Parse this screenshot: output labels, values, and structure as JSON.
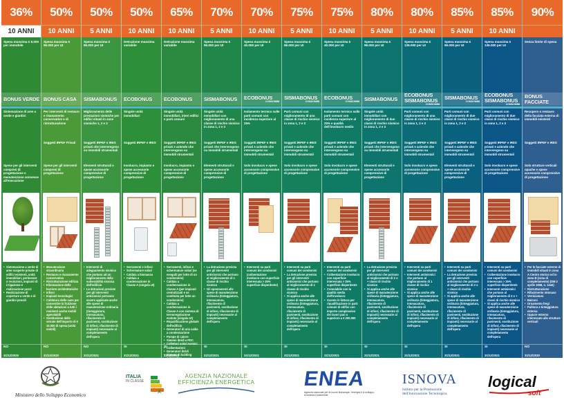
{
  "columns": [
    {
      "percent": "36%",
      "term": "10 ANNI",
      "term_hl": true,
      "spesa": "Spesa massima € 5.000 per immobile",
      "name": "BONUS VERDE",
      "name_sub": "",
      "desc": "Sistemazione di aree a verde e giardini",
      "sogg": "",
      "amb": "Spese per gli interventi compresi di progettazione e manutenzione connesse all'esecuzione",
      "list": [
        "Sistemazione a verde di aree scoperte private di edifici esistenti, unità immobiliari, pertinenze o recinzioni, impianti di irrigazione e realizzazione pozzi",
        "Realizzazione di coperture a verde e di giardini pensili"
      ],
      "yn": "NO",
      "dt": "31/12/2020",
      "color": "#2f8a36",
      "img": "tree"
    },
    {
      "percent": "50%",
      "term": "10 ANNI",
      "term_hl": false,
      "spesa": "Spesa massima € 96.000 per UI",
      "name": "BONUS CASA",
      "name_sub": "",
      "desc": "Per interventi di restauro e risanamento conservativo e di ristrutturazione",
      "sogg": "Soggetti IRPEF Privati",
      "amb": "Spese per gli interventi compresi di progettazione",
      "list": [
        "Manutenzione straordinaria",
        "Restauro e risanamento conservativo",
        "Ristrutturazione edilizia",
        "Eliminazione delle barriere architettoniche",
        "Infissi",
        "Impianti tecnologici",
        "Cablatura delle case per consentire la fruizione delle abitazioni a tutti i residenti anche mobili agevolabili",
        "Sostituzione delle vetrate dell'importo di € 10.000 di spesa (unità mobili)"
      ],
      "yn": "NO",
      "dt": "31/12/2020",
      "color": "#4b9a3a",
      "img": "windows"
    },
    {
      "percent": "50%",
      "term": "5 ANNI",
      "term_hl": false,
      "spesa": "Spesa massima € 96.000 per UI",
      "name": "SISMABONUS",
      "name_sub": "",
      "desc": "Miglioramento delle prestazioni sismiche per edifici situati in zone sismiche 1, 2 e 3",
      "sogg": "Soggetti IRPEF e IRES privati che intervengono su immobili strumentali",
      "amb": "Elementi strutturali e spese accessorie comprensive di progettazione",
      "list": [
        "Interventi di adeguamento sismico che portano ad un miglioramento della vulnerabilità sismica dell'edificio",
        "Le detrazioni previste per gli interventi antisismici potranno essere applicate anche alle spese di manutenzione ordinaria (tinteggiatura, intonacatura, rifacimento di pavimenti, sostituzione di infissi, rifacimento di impianti) necessarie al completamento dell'opera"
      ],
      "yn": "NO",
      "dt": "31/12/2021",
      "color": "#3c9540",
      "img": "pillars"
    },
    {
      "percent": "50%",
      "term": "10 ANNI",
      "term_hl": false,
      "spesa": "Detrazione massima variabile",
      "name": "ECOBONUS",
      "name_sub": "",
      "desc": "Singole unità immobiliari",
      "sogg": "Soggetti IRPEF e IRES",
      "amb": "Involucro, impianto e spese accessorie comprensive di progettazione",
      "list": [
        "Serramenti e infissi",
        "Schermature solari",
        "Caldaia a biomassa",
        "Caldaia a condensazione in Classe A (singola UI)"
      ],
      "yn": "SI",
      "dt": "31/12/2021",
      "color": "#2e8f3a",
      "img": "boiler"
    },
    {
      "percent": "65%",
      "term": "10 ANNI",
      "term_hl": false,
      "spesa": "Detrazione massima variabile",
      "name": "ECOBONUS",
      "name_sub": "",
      "desc": "Singole unità immobiliari, interi edifici e parti comuni",
      "sogg": "Soggetti IRPEF e IRES privati e aziende che intervengono su immobili strumentali",
      "amb": "Involucro, impianto e spese accessorie comprensive di progettazione",
      "list": [
        "Serramenti, infissi e schermature solari (se eseguiti per lotto di un condominio)",
        "Caldaia a condensazione in Classe A (per impianti centralizzati e se costituita per lotte un condominio)",
        "Caldaia a condensazione in Classe A con sistema di termoregolazione evoluto (singola UI)",
        "Riqualificazione globale dell'edificio",
        "Generatori di aria calda a condensazione",
        "Pompe di calore",
        "Sistemi ibridi a PDC",
        "Collettori solari termici",
        "Coibentazioni",
        "Generatori ibridi",
        "Sistemi di building automation",
        "Microgeneratori"
      ],
      "yn": "SI",
      "dt": "31/12/2021",
      "color": "#2b8a40",
      "img": "roofwall"
    },
    {
      "percent": "70%",
      "term": "5 ANNI",
      "term_hl": false,
      "spesa": "Spesa massima € 96.000 per UI",
      "name": "SISMABONUS",
      "name_sub": "",
      "desc": "Singole unità immobiliari con miglioramento di una classe di rischio sismico in zona 1, 2 e 3",
      "sogg": "Soggetti IRPEF e IRES privati che intervengono su immobili strumentali",
      "amb": "Elementi strutturali e spese accessorie comprensive di progettazione",
      "list": [
        "La detrazione prevista per gli interventi antisismici che portano al miglioramento di 1 classe di rischio sismico",
        "Gli spostamenti alle spese di manutenzione ordinaria (tinteggiatura, intonacatura, rifacimento di pavimenti, sostituzione di infissi, rifacimento di impianti) necessarie al completamento dell'opera"
      ],
      "yn": "SI",
      "dt": "31/12/2021",
      "color": "#20864a",
      "img": "wallpillar"
    },
    {
      "percent": "70%",
      "term": "10 ANNI",
      "term_hl": false,
      "spesa": "Spesa massima € 40.000 per UI",
      "name": "ECOBONUS",
      "name_sub": "CONDOMINI",
      "desc": "Isolamento termico sulle parti comuni con incidenza superiore al 25%",
      "sogg": "Soggetti IRPEF e IRES privati e aziende che intervengono su immobili strumentali",
      "amb": "Solo involucro e spese accessorie comprensive di progettazione",
      "list": [
        "Interventi su parti comuni dei condomini (coibentazione involucro con superficie interessata > 25% superficie disperdente)"
      ],
      "yn": "SI",
      "dt": "31/12/2021",
      "color": "#198553",
      "img": "insul"
    },
    {
      "percent": "75%",
      "term": "5 ANNI",
      "term_hl": false,
      "spesa": "Spesa massima € 96.000 per UI",
      "name": "SISMABONUS",
      "name_sub": "CONDOMINI",
      "desc": "Parti comuni con miglioramento di una classe di rischio sismico in zona 1, 2 e 3",
      "sogg": "Soggetti IRPEF e IRES privati e aziende che intervengono su immobili strumentali",
      "amb": "Solo involucro e spese accessorie comprensive di progettazione",
      "list": [
        "Interventi su parti comuni dei condomini",
        "La detrazione prevista per gli interventi antisismici che portano al miglioramento di 1 classe di rischio sismico",
        "Si applica anche alle spese di manutenzione ordinaria (tinteggiatura, intonacatura, rifacimento di pavimenti, sostituzione di infissi, rifacimento di impianti) necessarie al completamento dell'opera"
      ],
      "yn": "SI",
      "dt": "31/12/2021",
      "color": "#14805c",
      "img": "brickroof"
    },
    {
      "percent": "75%",
      "term": "10 ANNI",
      "term_hl": false,
      "spesa": "Spesa massima € 40.000 per UI",
      "name": "ECOBONUS",
      "name_sub": "CONDOMINI",
      "desc": "Isolamento termico sulle parti comuni con incidenza superiore al 25% e qualità dell'involucro medio",
      "sogg": "Soggetti IRPEF e IRES privati e aziende che intervengono su immobili strumentali",
      "amb": "Solo involucro e spese accessorie comprensive di progettazione",
      "list": [
        "Interventi su parti comuni dei condomini",
        "Coibentazione involucro con superficie interessata > 25% superficie disperdente",
        "Cumulabile con la qualità media dell'involucro",
        "Sconto in fattura per riqualificazione in parti comuni di edifici con importo complessivo dei lavori pari o superiore a € 200.000"
      ],
      "yn": "SI",
      "dt": "31/12/2021",
      "color": "#0f7b64",
      "img": "brickwall"
    },
    {
      "percent": "80%",
      "term": "5 ANNI",
      "term_hl": false,
      "spesa": "Spesa massima € 96.000 per UI",
      "name": "SISMABONUS",
      "name_sub": "",
      "desc": "Singole unità immobiliari con miglioramento di due classi di rischio sismico in zona 1, 2 e 3",
      "sogg": "Soggetti IRPEF e IRES privati che intervengono su immobili strumentali",
      "amb": "Elementi strutturali e spese accessorie comprensive di progettazione",
      "list": [
        "La detrazione prevista per gli interventi antisismici che portano al miglioramento di 2 o + classi di rischio sismico",
        "Si applica anche alle spese di manutenzione ordinaria (tinteggiatura, intonacatura, rifacimento di pavimenti, sostituzione di infissi, rifacimento di impianti) necessarie al completamento dell'opera"
      ],
      "yn": "SI",
      "dt": "31/12/2021",
      "color": "#0d756d",
      "img": "wallpillar"
    },
    {
      "percent": "80%",
      "term": "10 ANNI",
      "term_hl": false,
      "spesa": "Spesa massima € 136.000 per UI",
      "name": "ECOBONUS SISMABONUS",
      "name_sub": "CONDOMINI",
      "desc": "Parti comuni con miglioramento di una classe di rischio sismico in zona 1, 2 e 3",
      "sogg": "Soggetti IRPEF e IRES privati e aziende che intervengono su immobili strumentali",
      "amb": "Solo involucro e spese accessorie comprensive di progettazione",
      "list": [
        "Interventi su parti comuni dei condomini",
        "Interventi antisismici che portano al miglioramento di 1 classe di rischio sismico",
        "Si applica anche alle spese di manutenzione ordinaria (tinteggiatura, intonacatura, rifacimento di pavimenti, sostituzione di infissi, rifacimento di impianti) necessarie al completamento dell'opera"
      ],
      "yn": "SI",
      "dt": "31/12/2021",
      "color": "#0b6c77",
      "img": "roofonly"
    },
    {
      "percent": "85%",
      "term": "5 ANNI",
      "term_hl": false,
      "spesa": "Spesa massima € 96.000 per UI",
      "name": "SISMABONUS",
      "name_sub": "CONDOMINI",
      "desc": "Parti comuni con miglioramento di due classi di rischio sismico in zona 1, 2 e 3",
      "sogg": "Soggetti IRPEF e IRES privati e aziende che intervengono su immobili strumentali",
      "amb": "Elementi strutturali e spese accessorie comprensive di progettazione",
      "list": [
        "Interventi su parti comuni dei condomini",
        "La detrazione prevista per gli interventi antisismici che portano al miglioramento di 2 o + classi di rischio sismico",
        "Si applica anche alle spese di manutenzione ordinaria (tinteggiatura, intonacatura, rifacimento di pavimenti, sostituzione di infissi, rifacimento di impianti) necessarie al completamento dell'opera"
      ],
      "yn": "SI",
      "dt": "31/12/2021",
      "color": "#0a617f",
      "img": "brickroof"
    },
    {
      "percent": "85%",
      "term": "10 ANNI",
      "term_hl": false,
      "spesa": "Spesa massima € 136.000 per UI",
      "name": "ECOBONUS SISMABONUS",
      "name_sub": "CONDOMINI",
      "desc": "Parti comuni con miglioramento di due classi di rischio sismico in zona 1, 2 e 3",
      "sogg": "Soggetti IRPEF e IRES privati e aziende che intervengono su immobili strumentali",
      "amb": "Solo involucro e spese accessorie comprensive di progettazione",
      "list": [
        "Interventi su parti comuni dei condomini",
        "Coibentazione involucro con superficie interessata > 25% superficie disperdente",
        "Interventi antisismici che portano al miglioramento di 2 o + classi di rischio sismico",
        "Si applica anche alle spese di manutenzione ordinaria (tinteggiatura, intonacatura, rifacimento di pavimenti, sostituzione di infissi, rifacimento di impianti) necessarie al completamento dell'opera"
      ],
      "yn": "SI",
      "dt": "31/12/2021",
      "color": "#0b5686",
      "img": "brickroof"
    },
    {
      "percent": "90%",
      "term": "",
      "term_hl": false,
      "spesa": "Senza limite di spesa",
      "name": "BONUS FACCIATE",
      "name_sub": "",
      "desc": "Recupero o restauro della facciata esterna di immobili esistenti",
      "sogg": "Soggetti IRPEF e IRES",
      "amb": "Solo strutture verticali opache e spese accessorie comprensive di progettazione",
      "list": [
        "Per le facciate esterne di immobili situati in zona A Centro storico ed in zona B (zona di completamento) (DM 2 aprile 1968, n. 1444)",
        "Ristrutturazione",
        "Rifacimento intonaco",
        "Verniciatura",
        "Balconi",
        "Ornamento fregi",
        "Pulitura e tinteggiatura esterna",
        "Oppure esterno interessato alle strutture verticali"
      ],
      "yn": "NO",
      "dt": "31/12/2020",
      "color": "#2f5f8f",
      "img": "facade"
    }
  ],
  "colors": {
    "orange": "#e8692a",
    "highlight": "#4fb7c9"
  },
  "footer": {
    "ministry": "Ministero dello Sviluppo Economico",
    "italia_line1": "ITALIA",
    "italia_line2": "IN CLASSE",
    "italia_letter": "A",
    "agency_line1": "AGENZIA NAZIONALE",
    "agency_line2": "EFFICIENZA ENERGETICA",
    "enea": "ENEA",
    "enea_sub": "Agenzia nazionale per le nuove tecnologie, l'energia e lo sviluppo economico sostenibile",
    "isnova": "ISNOVA",
    "isnova_sub1": "Istituto per la Promozione",
    "isnova_sub2": "dell'Innovazione Tecnologica",
    "logical": "logical",
    "logical_soft": "soft"
  }
}
